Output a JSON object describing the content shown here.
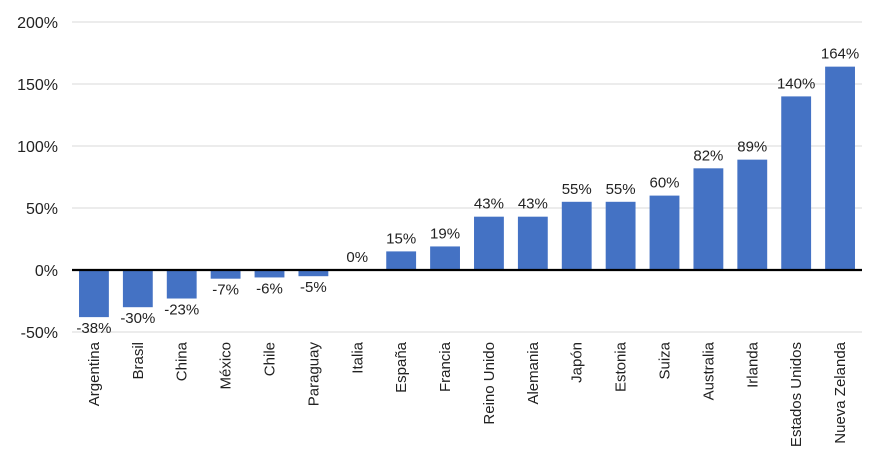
{
  "chart_data": {
    "type": "bar",
    "categories": [
      "Argentina",
      "Brasil",
      "China",
      "México",
      "Chile",
      "Paraguay",
      "Italia",
      "España",
      "Francia",
      "Reino Unido",
      "Alemania",
      "Japón",
      "Estonia",
      "Suiza",
      "Australia",
      "Irlanda",
      "Estados Unidos",
      "Nueva Zelanda"
    ],
    "values": [
      -38,
      -30,
      -23,
      -7,
      -6,
      -5,
      0,
      15,
      19,
      43,
      43,
      55,
      55,
      60,
      82,
      89,
      140,
      164
    ],
    "data_labels": [
      "-38%",
      "-30%",
      "-23%",
      "-7%",
      "-6%",
      "-5%",
      "0%",
      "15%",
      "19%",
      "43%",
      "43%",
      "55%",
      "55%",
      "60%",
      "82%",
      "89%",
      "140%",
      "164%"
    ],
    "y_ticks": [
      -50,
      0,
      50,
      100,
      150,
      200
    ],
    "y_tick_labels": [
      "-50%",
      "0%",
      "50%",
      "100%",
      "150%",
      "200%"
    ],
    "ylim": [
      -50,
      200
    ],
    "title": "",
    "xlabel": "",
    "ylabel": "",
    "grid": true,
    "bar_color": "#4472C4",
    "legend": "none"
  }
}
